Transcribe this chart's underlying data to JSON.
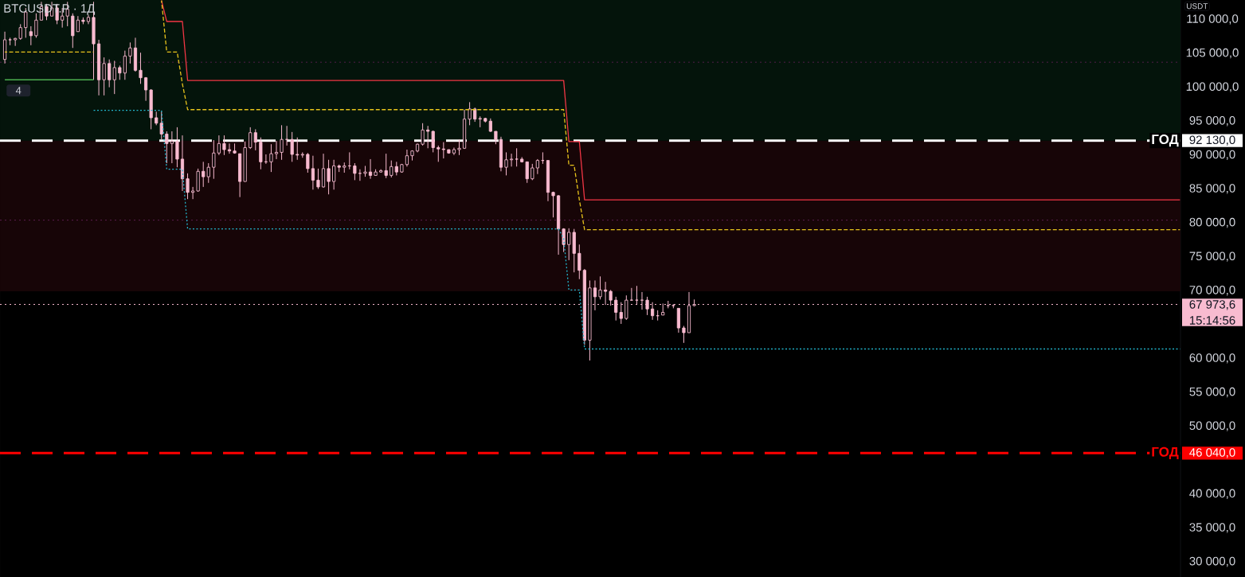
{
  "chart_data": {
    "type": "candlestick",
    "title": "BTCUSDT.P · 1Д",
    "color": "#f8bbd0",
    "categories": [
      null,
      null,
      null,
      null,
      null,
      null,
      null,
      null,
      null,
      null,
      null,
      null,
      null,
      null,
      null,
      null,
      null,
      null,
      null,
      null,
      null,
      null,
      null,
      null,
      null,
      null,
      null,
      null,
      null,
      null,
      null,
      null,
      null,
      null,
      null,
      null,
      null,
      null,
      null,
      null,
      null,
      null,
      null,
      null,
      null,
      null,
      null,
      null,
      null,
      null,
      null,
      null,
      null,
      null,
      null,
      null,
      null,
      null,
      null,
      null,
      null,
      null,
      null,
      null,
      null,
      null,
      null,
      null,
      null,
      null,
      null,
      null,
      null,
      null,
      null,
      null,
      null,
      null,
      null,
      null,
      null,
      null,
      null,
      null,
      null,
      null,
      null,
      null,
      null,
      null,
      null,
      null,
      null,
      null,
      null,
      null,
      null,
      null,
      null,
      null,
      null,
      null,
      null,
      null,
      null,
      null,
      null,
      null,
      null,
      null,
      null,
      null,
      null,
      null,
      null,
      null,
      null,
      null,
      null,
      null,
      null,
      null,
      null,
      null,
      null,
      null,
      null,
      null,
      null,
      null,
      null,
      null,
      null,
      null,
      null,
      null,
      null,
      null,
      null,
      null,
      null,
      null,
      null,
      null,
      null,
      null,
      null,
      null,
      null,
      null,
      null,
      null,
      null,
      null,
      null,
      null,
      null,
      null,
      null,
      null,
      null,
      null,
      null,
      null,
      null,
      null,
      null,
      null,
      null,
      null,
      null,
      null,
      null,
      null,
      null,
      null,
      null,
      null,
      null,
      null,
      null,
      null,
      null,
      null,
      null,
      null,
      null,
      null,
      null,
      null,
      null,
      null,
      null,
      null,
      null,
      null,
      null,
      null,
      null,
      null,
      null,
      null,
      null,
      null,
      null,
      null,
      null,
      null,
      null,
      null,
      null,
      null,
      null,
      null,
      null,
      null,
      null,
      null,
      null,
      null,
      null,
      null,
      null,
      null,
      null,
      null
    ],
    "ohlc": [
      [
        104100,
        108200,
        103500,
        107000
      ],
      [
        107000,
        107300,
        106200,
        107000
      ],
      [
        107000,
        107300,
        106100,
        107200
      ],
      [
        107200,
        109300,
        107000,
        108800
      ],
      [
        108800,
        111700,
        107300,
        111100
      ],
      [
        108200,
        109000,
        106200,
        107600
      ],
      [
        107600,
        110900,
        107300,
        109900
      ],
      [
        109900,
        112600,
        109900,
        111900
      ],
      [
        111900,
        112300,
        109900,
        110500
      ],
      [
        110500,
        112600,
        110500,
        111700
      ],
      [
        111700,
        112300,
        109300,
        109900
      ],
      [
        109900,
        111700,
        108800,
        110500
      ],
      [
        110500,
        112600,
        109000,
        111500
      ],
      [
        110500,
        110900,
        105800,
        107600
      ],
      [
        108200,
        110500,
        108200,
        109900
      ],
      [
        109900,
        110300,
        109300,
        109700
      ],
      [
        109700,
        110700,
        109300,
        110300
      ],
      [
        110300,
        112600,
        101100,
        106400
      ],
      [
        106400,
        107000,
        98800,
        101100
      ],
      [
        101100,
        104400,
        98800,
        103500
      ],
      [
        103500,
        104100,
        100000,
        101100
      ],
      [
        101100,
        103900,
        99000,
        102900
      ],
      [
        102900,
        103200,
        101100,
        102100
      ],
      [
        102100,
        105400,
        101100,
        104600
      ],
      [
        104600,
        106600,
        103500,
        105800
      ],
      [
        105800,
        107300,
        102300,
        102500
      ],
      [
        102500,
        105100,
        100500,
        101400
      ],
      [
        101400,
        101500,
        98000,
        99600
      ],
      [
        99600,
        99700,
        93800,
        95500
      ],
      [
        95500,
        96400,
        94400,
        94700
      ],
      [
        94700,
        96400,
        92300,
        93100
      ],
      [
        93100,
        93500,
        88800,
        91700
      ],
      [
        91700,
        93500,
        88800,
        92000
      ],
      [
        92000,
        94100,
        88200,
        89400
      ],
      [
        89400,
        92900,
        84700,
        86500
      ],
      [
        86500,
        87300,
        83500,
        84500
      ],
      [
        84500,
        85300,
        83500,
        84700
      ],
      [
        84700,
        88000,
        84600,
        87600
      ],
      [
        87600,
        89000,
        85300,
        86800
      ],
      [
        86800,
        88800,
        85900,
        88200
      ],
      [
        88200,
        92200,
        86500,
        90300
      ],
      [
        90300,
        92900,
        90000,
        91700
      ],
      [
        91700,
        92900,
        90000,
        90800
      ],
      [
        90800,
        91700,
        90200,
        90600
      ],
      [
        90600,
        91700,
        90200,
        90300
      ],
      [
        90200,
        90200,
        83800,
        86100
      ],
      [
        86100,
        92000,
        86100,
        91100
      ],
      [
        91100,
        94100,
        90900,
        93300
      ],
      [
        93300,
        93800,
        90700,
        91900
      ],
      [
        91900,
        92600,
        87900,
        89000
      ],
      [
        89000,
        90100,
        88700,
        89000
      ],
      [
        89000,
        91600,
        87500,
        90200
      ],
      [
        90200,
        92100,
        89400,
        90400
      ],
      [
        90400,
        94400,
        89300,
        92300
      ],
      [
        92300,
        94300,
        91400,
        92300
      ],
      [
        92300,
        93400,
        89000,
        90100
      ],
      [
        90100,
        92600,
        89300,
        90000
      ],
      [
        90000,
        90400,
        89600,
        90100
      ],
      [
        90100,
        90300,
        87400,
        88000
      ],
      [
        88000,
        89900,
        84900,
        86300
      ],
      [
        86300,
        88000,
        85000,
        85300
      ],
      [
        85300,
        90200,
        85200,
        88000
      ],
      [
        88000,
        89300,
        84200,
        86100
      ],
      [
        86100,
        89300,
        84900,
        88400
      ],
      [
        88400,
        88600,
        87500,
        88200
      ],
      [
        88200,
        88900,
        87400,
        88400
      ],
      [
        88400,
        90400,
        87900,
        88400
      ],
      [
        88400,
        88800,
        86300,
        87300
      ],
      [
        87300,
        87900,
        86200,
        87300
      ],
      [
        87300,
        88400,
        86800,
        87500
      ],
      [
        87500,
        89400,
        86500,
        87000
      ],
      [
        87000,
        87900,
        87000,
        87500
      ],
      [
        87500,
        87900,
        87400,
        87700
      ],
      [
        87700,
        90200,
        86600,
        87000
      ],
      [
        87000,
        89200,
        86700,
        88300
      ],
      [
        88300,
        89000,
        87000,
        87500
      ],
      [
        87500,
        88700,
        87400,
        88600
      ],
      [
        88600,
        90800,
        88300,
        89900
      ],
      [
        89900,
        90700,
        89200,
        90600
      ],
      [
        90600,
        91700,
        90400,
        91600
      ],
      [
        91600,
        94700,
        91400,
        93700
      ],
      [
        93700,
        94300,
        91000,
        93500
      ],
      [
        93500,
        93600,
        90400,
        91100
      ],
      [
        91100,
        91400,
        89000,
        90900
      ],
      [
        90900,
        91900,
        89500,
        90800
      ],
      [
        90800,
        90800,
        90200,
        90300
      ],
      [
        90300,
        91100,
        90000,
        90800
      ],
      [
        90800,
        92300,
        90000,
        91000
      ],
      [
        91000,
        96700,
        90900,
        95300
      ],
      [
        95300,
        97800,
        94400,
        96800
      ],
      [
        96800,
        97000,
        94900,
        95300
      ],
      [
        95300,
        95700,
        94100,
        95400
      ],
      [
        95400,
        95500,
        94800,
        95000
      ],
      [
        95000,
        95400,
        93400,
        93500
      ],
      [
        93500,
        93500,
        91600,
        92300
      ],
      [
        92300,
        92700,
        87600,
        88200
      ],
      [
        88200,
        90400,
        87000,
        89300
      ],
      [
        89300,
        90200,
        88300,
        89400
      ],
      [
        89400,
        91000,
        88300,
        89400
      ],
      [
        89400,
        89700,
        88900,
        89000
      ],
      [
        89000,
        89000,
        85900,
        86500
      ],
      [
        86500,
        88700,
        86300,
        88100
      ],
      [
        88100,
        89400,
        87200,
        89200
      ],
      [
        89200,
        90400,
        88700,
        89200
      ],
      [
        89200,
        89200,
        83200,
        84500
      ],
      [
        84500,
        84600,
        80800,
        84000
      ],
      [
        84000,
        84100,
        75300,
        79100
      ],
      [
        79100,
        79200,
        75700,
        76800
      ],
      [
        76800,
        79200,
        74500,
        78600
      ],
      [
        78600,
        79100,
        72700,
        75500
      ],
      [
        75500,
        76800,
        71700,
        73000
      ],
      [
        73000,
        73200,
        62000,
        62700
      ],
      [
        62700,
        71500,
        59700,
        70400
      ],
      [
        70400,
        71500,
        67100,
        69100
      ],
      [
        69100,
        72100,
        68700,
        70100
      ],
      [
        70100,
        71300,
        67900,
        69900
      ],
      [
        69900,
        70100,
        67800,
        68600
      ],
      [
        68600,
        69100,
        65600,
        66800
      ],
      [
        66800,
        68300,
        65100,
        65900
      ],
      [
        65900,
        69300,
        65700,
        68600
      ],
      [
        68600,
        70400,
        68500,
        68600
      ],
      [
        68600,
        70700,
        67900,
        68600
      ],
      [
        68600,
        69800,
        67200,
        68600
      ],
      [
        68600,
        69100,
        66400,
        67300
      ],
      [
        67300,
        68300,
        65700,
        66300
      ],
      [
        66300,
        67100,
        65600,
        66300
      ],
      [
        66400,
        68100,
        66400,
        66800
      ],
      [
        67800,
        68500,
        67400,
        67800
      ],
      [
        67800,
        68000,
        67400,
        67800
      ],
      [
        67400,
        67400,
        63800,
        64500
      ],
      [
        64500,
        64800,
        62300,
        63800
      ],
      [
        63800,
        69800,
        63800,
        67800
      ],
      [
        67800,
        68700,
        67700,
        67973.6
      ],
      null,
      null,
      null,
      null,
      null,
      null,
      null,
      null,
      null,
      null,
      null,
      null,
      null,
      null,
      null,
      null,
      null,
      null,
      null,
      null,
      null,
      null,
      null,
      null,
      null,
      null,
      null,
      null,
      null,
      null,
      null,
      null,
      null,
      null,
      null,
      null,
      null,
      null,
      null,
      null,
      null,
      null,
      null,
      null,
      null,
      null,
      null,
      null,
      null,
      null,
      null,
      null,
      null,
      null,
      null,
      null,
      null,
      null,
      null,
      null,
      null,
      null,
      null,
      null,
      null,
      null,
      null,
      null,
      null,
      null,
      null,
      null,
      null,
      null,
      null,
      null,
      null,
      null,
      null,
      null,
      null,
      null,
      null,
      null,
      null,
      null,
      null,
      null,
      null,
      null,
      null,
      null,
      null
    ],
    "series": [
      {
        "type": "line",
        "color": "#4caf50",
        "line_style": "solid",
        "values": [
          101100,
          101100,
          101100,
          101100,
          101100,
          101100,
          101100,
          101100,
          101100,
          101100,
          101100,
          101100,
          101100,
          101100,
          101100,
          101100,
          101100,
          101100,
          null,
          null,
          null,
          null,
          null,
          null,
          null,
          null,
          null,
          null,
          null,
          null,
          null,
          null,
          null,
          null,
          null,
          null,
          null,
          null,
          null,
          null,
          null,
          null,
          null,
          null,
          null,
          null,
          null,
          null,
          null,
          null,
          null,
          null,
          null,
          null,
          null,
          null,
          null,
          null,
          null,
          null,
          null,
          null,
          null,
          null,
          null,
          null,
          null,
          null,
          null,
          null,
          null,
          null,
          null,
          null,
          null,
          null,
          null,
          null,
          null,
          null,
          null,
          null,
          null,
          null,
          null,
          null,
          null,
          null,
          null,
          null,
          null,
          null,
          null,
          null,
          null,
          null,
          null,
          null,
          null,
          null,
          null,
          null,
          null,
          null,
          null,
          null,
          null,
          null,
          null,
          null,
          null,
          null,
          null,
          null,
          null,
          null,
          null,
          null,
          null,
          null,
          null,
          null,
          null,
          null,
          null,
          null,
          null,
          null,
          null,
          null,
          null,
          null,
          null,
          null,
          null,
          null,
          null,
          null,
          null,
          null,
          null,
          null,
          null,
          null,
          null,
          null,
          null,
          null,
          null,
          null,
          null,
          null,
          null,
          null,
          null,
          null,
          null,
          null,
          null,
          null,
          null,
          null,
          null,
          null,
          null,
          null,
          null,
          null,
          null,
          null,
          null,
          null,
          null,
          null,
          null,
          null,
          null,
          null,
          null,
          null,
          null,
          null,
          null,
          null,
          null,
          null,
          null,
          null,
          null,
          null,
          null,
          null,
          null,
          null,
          null,
          null,
          null,
          null,
          null,
          null,
          null,
          null,
          null,
          null,
          null,
          null,
          null,
          null,
          null,
          null,
          null,
          null,
          null,
          null,
          null,
          null,
          null,
          null,
          null,
          null,
          null,
          null,
          null,
          null,
          null,
          null
        ]
      },
      {
        "type": "line",
        "color": "#f23645",
        "line_style": "solid",
        "values": [
          null,
          null,
          null,
          null,
          null,
          null,
          null,
          null,
          null,
          null,
          null,
          null,
          null,
          null,
          null,
          null,
          null,
          null,
          null,
          null,
          null,
          null,
          null,
          null,
          null,
          null,
          null,
          null,
          null,
          null,
          112800,
          109700,
          109700,
          109700,
          109700,
          101000,
          101000,
          101000,
          101000,
          101000,
          101000,
          101000,
          101000,
          101000,
          101000,
          101000,
          101000,
          101000,
          101000,
          101000,
          101000,
          101000,
          101000,
          101000,
          101000,
          101000,
          101000,
          101000,
          101000,
          101000,
          101000,
          101000,
          101000,
          101000,
          101000,
          101000,
          101000,
          101000,
          101000,
          101000,
          101000,
          101000,
          101000,
          101000,
          101000,
          101000,
          101000,
          101000,
          101000,
          101000,
          101000,
          101000,
          101000,
          101000,
          101000,
          101000,
          101000,
          101000,
          101000,
          101000,
          101000,
          101000,
          101000,
          101000,
          101000,
          101000,
          101000,
          101000,
          101000,
          101000,
          101000,
          101000,
          101000,
          101000,
          101000,
          101000,
          101000,
          101000,
          92000,
          92000,
          92000,
          83400,
          83400,
          83400,
          83400,
          83400,
          83400,
          83400,
          83400,
          83400,
          83400,
          83400,
          83400,
          83400,
          83400,
          83400,
          83400,
          83400,
          83400,
          83400,
          83400,
          83400,
          83400,
          83400,
          83400,
          83400,
          83400,
          83400,
          83400,
          83400,
          83400,
          83400,
          83400,
          83400,
          83400,
          83400,
          83400,
          83400,
          83400,
          83400,
          83400,
          83400,
          83400,
          83400,
          83400,
          83400,
          83400,
          83400,
          83400,
          83400,
          83400,
          83400,
          83400,
          83400,
          83400,
          83400,
          83400,
          83400,
          83400,
          83400,
          83400,
          83400,
          83400,
          83400,
          83400,
          83400,
          83400,
          83400,
          83400,
          83400,
          83400,
          83400,
          83400,
          83400,
          83400,
          83400,
          83400,
          83400,
          83400,
          83400,
          83400,
          83400,
          83400,
          83400,
          83400,
          83400,
          83400,
          83400,
          83400,
          83400,
          83400,
          83400,
          83400,
          83400,
          83400,
          83400,
          83400,
          83400,
          83400,
          83400,
          83400,
          83400,
          83400,
          83400,
          83400,
          83400,
          83400,
          83400,
          83400,
          83400,
          83400,
          83400,
          83400,
          83400,
          83400,
          83400
        ]
      },
      {
        "type": "line",
        "color": "#e8c41c",
        "line_style": "dashed",
        "values": [
          105200,
          105200,
          105200,
          105200,
          105200,
          105200,
          105200,
          105200,
          105200,
          105200,
          105200,
          105200,
          105200,
          105200,
          105200,
          105200,
          105200,
          105200,
          null,
          null,
          null,
          null,
          null,
          null,
          null,
          null,
          null,
          null,
          null,
          null,
          112800,
          105200,
          105200,
          105200,
          100500,
          96700,
          96700,
          96700,
          96700,
          96700,
          96700,
          96700,
          96700,
          96700,
          96700,
          96700,
          96700,
          96700,
          96700,
          96700,
          96700,
          96700,
          96700,
          96700,
          96700,
          96700,
          96700,
          96700,
          96700,
          96700,
          96700,
          96700,
          96700,
          96700,
          96700,
          96700,
          96700,
          96700,
          96700,
          96700,
          96700,
          96700,
          96700,
          96700,
          96700,
          96700,
          96700,
          96700,
          96700,
          96700,
          96700,
          96700,
          96700,
          96700,
          96700,
          96700,
          96700,
          96700,
          96700,
          96700,
          96700,
          96700,
          96700,
          96700,
          96700,
          96700,
          96700,
          96700,
          96700,
          96700,
          96700,
          96700,
          96700,
          96700,
          96700,
          96700,
          96700,
          96700,
          88500,
          88500,
          83400,
          79000,
          79000,
          79000,
          79000,
          79000,
          79000,
          79000,
          79000,
          79000,
          79000,
          79000,
          79000,
          79000,
          79000,
          79000,
          79000,
          79000,
          79000,
          79000,
          79000,
          79000,
          79000,
          79000,
          79000,
          79000,
          79000,
          79000,
          79000,
          79000,
          79000,
          79000,
          79000,
          79000,
          79000,
          79000,
          79000,
          79000,
          79000,
          79000,
          79000,
          79000,
          79000,
          79000,
          79000,
          79000,
          79000,
          79000,
          79000,
          79000,
          79000,
          79000,
          79000,
          79000,
          79000,
          79000,
          79000,
          79000,
          79000,
          79000,
          79000,
          79000,
          79000,
          79000,
          79000,
          79000,
          79000,
          79000,
          79000,
          79000,
          79000,
          79000,
          79000,
          79000,
          79000,
          79000,
          79000,
          79000,
          79000,
          79000,
          79000,
          79000,
          79000,
          79000,
          79000,
          79000,
          79000,
          79000,
          79000,
          79000,
          79000,
          79000,
          79000,
          79000,
          79000,
          79000,
          79000,
          79000,
          79000,
          79000,
          79000,
          79000,
          79000,
          79000,
          79000,
          79000,
          79000,
          79000,
          79000,
          79000,
          79000,
          79000,
          79000,
          79000,
          79000,
          79000
        ]
      },
      {
        "type": "line",
        "color": "#22b8cf",
        "line_style": "dotted",
        "values": [
          null,
          null,
          null,
          null,
          null,
          null,
          null,
          null,
          null,
          null,
          null,
          null,
          null,
          null,
          null,
          null,
          null,
          96600,
          96600,
          96600,
          96600,
          96600,
          96600,
          96600,
          96600,
          96600,
          96600,
          96600,
          96600,
          96600,
          96600,
          87900,
          87900,
          87900,
          87900,
          79100,
          79100,
          79100,
          79100,
          79100,
          79100,
          79100,
          79100,
          79100,
          79100,
          79100,
          79100,
          79100,
          79100,
          79100,
          79100,
          79100,
          79100,
          79100,
          79100,
          79100,
          79100,
          79100,
          79100,
          79100,
          79100,
          79100,
          79100,
          79100,
          79100,
          79100,
          79100,
          79100,
          79100,
          79100,
          79100,
          79100,
          79100,
          79100,
          79100,
          79100,
          79100,
          79100,
          79100,
          79100,
          79100,
          79100,
          79100,
          79100,
          79100,
          79100,
          79100,
          79100,
          79100,
          79100,
          79100,
          79100,
          79100,
          79100,
          79100,
          79100,
          79100,
          79100,
          79100,
          79100,
          79100,
          79100,
          79100,
          79100,
          79100,
          79100,
          79100,
          77700,
          70100,
          70100,
          70100,
          61400,
          61400,
          61400,
          61400,
          61400,
          61400,
          61400,
          61400,
          61400,
          61400,
          61400,
          61400,
          61400,
          61400,
          61400,
          61400,
          61400,
          61400,
          61400,
          61400,
          61400,
          61400,
          61400,
          61400,
          61400,
          61400,
          61400,
          61400,
          61400,
          61400,
          61400,
          61400,
          61400,
          61400,
          61400,
          61400,
          61400,
          61400,
          61400,
          61400,
          61400,
          61400,
          61400,
          61400,
          61400,
          61400,
          61400,
          61400,
          61400,
          61400,
          61400,
          61400,
          61400,
          61400,
          61400,
          61400,
          61400,
          61400,
          61400,
          61400,
          61400,
          61400,
          61400,
          61400,
          61400,
          61400,
          61400,
          61400,
          61400,
          61400,
          61400,
          61400,
          61400,
          61400,
          61400,
          61400,
          61400,
          61400,
          61400,
          61400,
          61400,
          61400,
          61400,
          61400,
          61400,
          61400,
          61400,
          61400,
          61400,
          61400,
          61400,
          61400,
          61400,
          61400,
          61400,
          61400,
          61400,
          61400,
          61400,
          61400,
          61400,
          61400,
          61400,
          61400,
          61400,
          61400,
          61400,
          61400,
          61400,
          61400,
          61400,
          61400,
          61400,
          61400,
          61400
        ]
      }
    ],
    "ylim": [
      27770,
      112870
    ],
    "yticks": [
      {
        "value": 30000,
        "label": "30 000,0"
      },
      {
        "value": 35000,
        "label": "35 000,0"
      },
      {
        "value": 40000,
        "label": "40 000,0"
      },
      {
        "value": 50000,
        "label": "50 000,0"
      },
      {
        "value": 55000,
        "label": "55 000,0"
      },
      {
        "value": 60000,
        "label": "60 000,0"
      },
      {
        "value": 70000,
        "label": "70 000,0"
      },
      {
        "value": 75000,
        "label": "75 000,0"
      },
      {
        "value": 80000,
        "label": "80 000,0"
      },
      {
        "value": 85000,
        "label": "85 000,0"
      },
      {
        "value": 90000,
        "label": "90 000,0"
      },
      {
        "value": 95000,
        "label": "95 000,0"
      },
      {
        "value": 100000,
        "label": "100 000,0"
      },
      {
        "value": 105000,
        "label": "105 000,0"
      },
      {
        "value": 110000,
        "label": "110 000,0"
      }
    ],
    "tick_labels": "y",
    "bands": [
      {
        "axis": "y",
        "from": 92130,
        "to": 112870,
        "color": "#04140b"
      },
      {
        "axis": "y",
        "from": 69900,
        "to": 92130,
        "color": "#170507"
      }
    ],
    "ref_lines": [
      {
        "axis": "y",
        "value": 92130,
        "label": "ГОД",
        "color": "#ffffff",
        "line_style": "dashed"
      },
      {
        "axis": "y",
        "value": 46040,
        "label": "ГОД",
        "color": "#ff0000",
        "line_style": "dashed"
      },
      {
        "axis": "y",
        "value": 67973.6,
        "color": "#f8bbd0",
        "line_style": "dotted"
      },
      {
        "axis": "y",
        "value": 103700,
        "color": "#5a1f4f",
        "line_style": "dotted"
      },
      {
        "axis": "y",
        "value": 80400,
        "color": "#5a1f4f",
        "line_style": "dotted"
      }
    ],
    "annotations": [
      "4",
      "USDT",
      "92 130,0",
      "46 040,0",
      "67 973,6",
      "15:14:56"
    ]
  }
}
